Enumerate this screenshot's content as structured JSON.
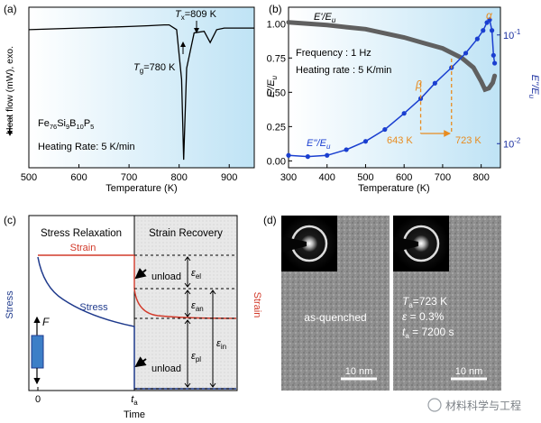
{
  "panel_a": {
    "label": "(a)",
    "ylabel": "Heat flow (mW), exo.",
    "xlabel": "Temperature (K)",
    "tg_label": "T",
    "tg_sub": "g",
    "tg_value": "=780 K",
    "tx_label": "T",
    "tx_sub": "x",
    "tx_value": "=809 K",
    "composition_parts": [
      "Fe",
      "76",
      "Si",
      "9",
      "B",
      "10",
      "P",
      "5"
    ],
    "heating_rate": "Heating Rate: 5 K/min"
  },
  "panel_b": {
    "label": "(b)",
    "xlabel": "Temperature (K)",
    "ylabel_left": "E'/Eu",
    "ylabel_right": "E''/Eu",
    "legend_storage": "E'/Eu",
    "legend_loss": "E''/Eu",
    "frequency": "Frequency : 1 Hz",
    "heating_rate": "Heating rate : 5 K/min",
    "alpha_label": "α",
    "beta_label": "β",
    "range_start": "643 K",
    "range_end": "723 K"
  },
  "panel_c": {
    "label": "(c)",
    "header_left": "Stress Relaxation",
    "header_right": "Strain Recovery",
    "strain_label": "Strain",
    "stress_label": "Stress",
    "ylabel_left": "Stress",
    "ylabel_right": "Strain",
    "force_label": "F",
    "unload_1": "unload",
    "unload_2": "unload",
    "eps_el": "εel",
    "eps_an": "εan",
    "eps_pl": "εpl",
    "eps_in": "εin",
    "tick_zero": "0",
    "tick_ta": "ta",
    "xlabel": "Time"
  },
  "panel_d": {
    "label": "(d)",
    "left_caption": "as-quenched",
    "ta_line": "Ta=723 K",
    "eps_line": "ε = 0.3%",
    "time_line": "ta = 7200 s",
    "scalebar_left": "10 nm",
    "scalebar_right": "10 nm",
    "watermark": "材料科学与工程"
  },
  "colors": {
    "storage": "#606060",
    "loss": "#1a3fd0",
    "annotation": "#e88c20",
    "stress": "#1f3a8c",
    "strain": "#d23a2a",
    "axis_right": "#1a2fa0"
  },
  "chart_data": [
    {
      "type": "line",
      "panel": "a",
      "xlim": [
        500,
        950
      ],
      "xticks": [
        500,
        600,
        700,
        800,
        900
      ],
      "yticks": "none",
      "series": [
        {
          "x": [
            500,
            550,
            600,
            650,
            700,
            740,
            770,
            780,
            795,
            805,
            809,
            815,
            830,
            850,
            862,
            875,
            890,
            920,
            950
          ],
          "y": [
            0.86,
            0.865,
            0.87,
            0.875,
            0.88,
            0.885,
            0.89,
            0.89,
            0.86,
            0.55,
            0.05,
            0.62,
            0.84,
            0.85,
            0.78,
            0.86,
            0.87,
            0.87,
            0.87
          ]
        }
      ]
    },
    {
      "type": "line",
      "panel": "b",
      "xlim": [
        300,
        850
      ],
      "xticks": [
        300,
        400,
        500,
        600,
        700,
        800
      ],
      "ylim_left": [
        -0.05,
        1.12
      ],
      "yticks_left": [
        0.0,
        0.25,
        0.5,
        0.75,
        1.0
      ],
      "ylim_right_log": [
        0.006,
        0.18
      ],
      "yticks_right": [
        0.01,
        0.1
      ],
      "series": [
        {
          "axis": "left",
          "x": [
            300,
            350,
            400,
            450,
            500,
            550,
            600,
            650,
            700,
            750,
            780,
            800,
            810,
            820,
            830,
            835
          ],
          "y": [
            1.01,
            1.0,
            0.99,
            0.975,
            0.96,
            0.93,
            0.9,
            0.86,
            0.82,
            0.75,
            0.68,
            0.58,
            0.52,
            0.53,
            0.57,
            0.62
          ]
        },
        {
          "axis": "right",
          "x": [
            300,
            350,
            400,
            450,
            500,
            550,
            600,
            643,
            680,
            723,
            760,
            790,
            805,
            815,
            822,
            828,
            832,
            835
          ],
          "y": [
            0.0078,
            0.0076,
            0.0078,
            0.0088,
            0.0105,
            0.0135,
            0.019,
            0.026,
            0.036,
            0.05,
            0.068,
            0.092,
            0.11,
            0.13,
            0.138,
            0.11,
            0.065,
            0.055
          ]
        }
      ],
      "markers": {
        "alpha_temp": 822,
        "beta_range": [
          643,
          723
        ]
      }
    }
  ]
}
